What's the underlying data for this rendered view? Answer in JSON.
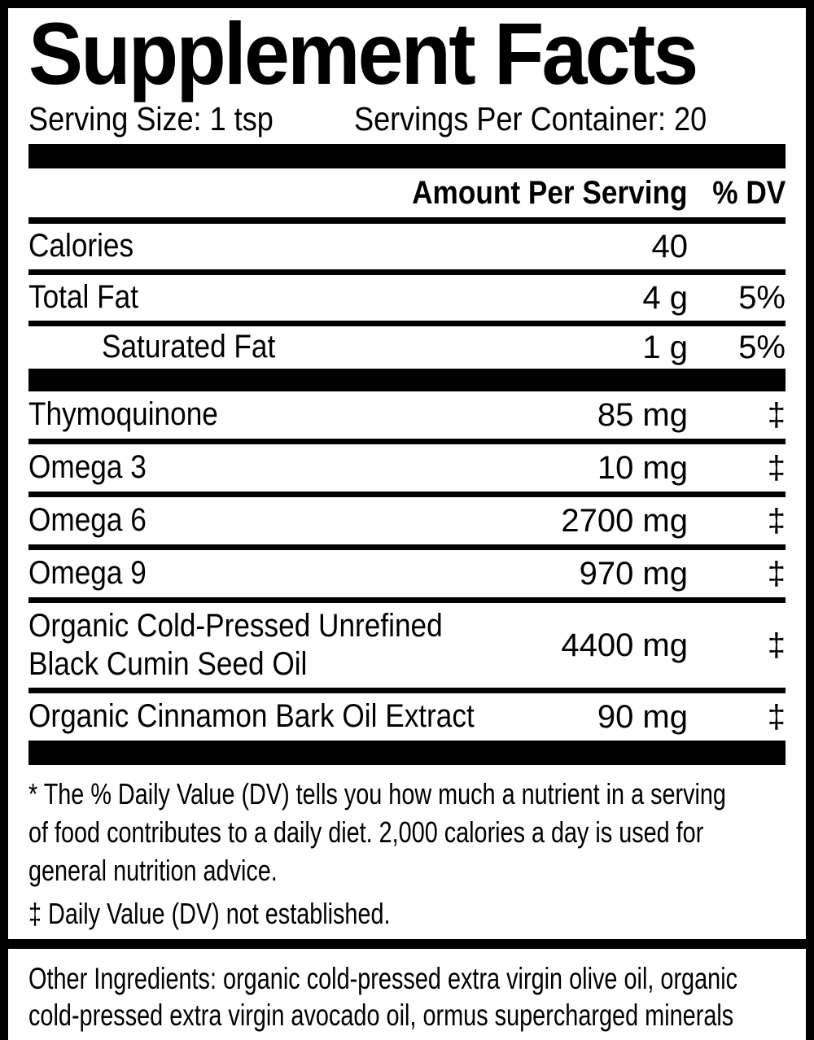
{
  "colors": {
    "text": "#000000",
    "background": "#ffffff"
  },
  "title": "Supplement Facts",
  "serving": {
    "size_label": "Serving Size: 1 tsp",
    "per_container_label": "Servings Per Container: 20"
  },
  "columns": {
    "amount": "Amount Per Serving",
    "dv": "% DV"
  },
  "nutrition_rows_macros": [
    {
      "name_lines": [
        "Calories"
      ],
      "amount": "40",
      "dv": "",
      "divider_after": true
    },
    {
      "name_lines": [
        "Total Fat"
      ],
      "amount": "4 g",
      "dv": "5%",
      "divider_after": true
    },
    {
      "name_lines": [
        "Saturated Fat"
      ],
      "amount": "1 g",
      "dv": "5%",
      "indent": true,
      "short": true,
      "divider_after": false
    }
  ],
  "nutrition_rows_actives": [
    {
      "name_lines": [
        "Thymoquinone"
      ],
      "amount": "85 mg",
      "dv": "‡",
      "divider_after": true
    },
    {
      "name_lines": [
        "Omega 3"
      ],
      "amount": "10 mg",
      "dv": "‡",
      "divider_after": true
    },
    {
      "name_lines": [
        "Omega 6"
      ],
      "amount": "2700 mg",
      "dv": "‡",
      "divider_after": true
    },
    {
      "name_lines": [
        "Omega 9"
      ],
      "amount": "970 mg",
      "dv": "‡",
      "divider_after": true
    },
    {
      "name_lines": [
        "Organic Cold-Pressed Unrefined",
        "Black Cumin Seed Oil"
      ],
      "amount": "4400 mg",
      "dv": "‡",
      "tall": true,
      "divider_after": true
    },
    {
      "name_lines": [
        "Organic Cinnamon Bark Oil Extract"
      ],
      "amount": "90 mg",
      "dv": "‡",
      "divider_after": false
    }
  ],
  "footnotes": {
    "dv_note_lines": [
      "* The % Daily Value (DV) tells you how much a nutrient in a serving",
      "of food contributes to a daily diet. 2,000 calories a day is used for",
      "general nutrition advice."
    ],
    "nd_note": "‡ Daily Value (DV) not established."
  },
  "other_ingredients_lines": [
    "Other Ingredients: organic cold-pressed extra virgin olive oil, organic",
    "cold-pressed extra virgin avocado oil, ormus supercharged minerals"
  ]
}
